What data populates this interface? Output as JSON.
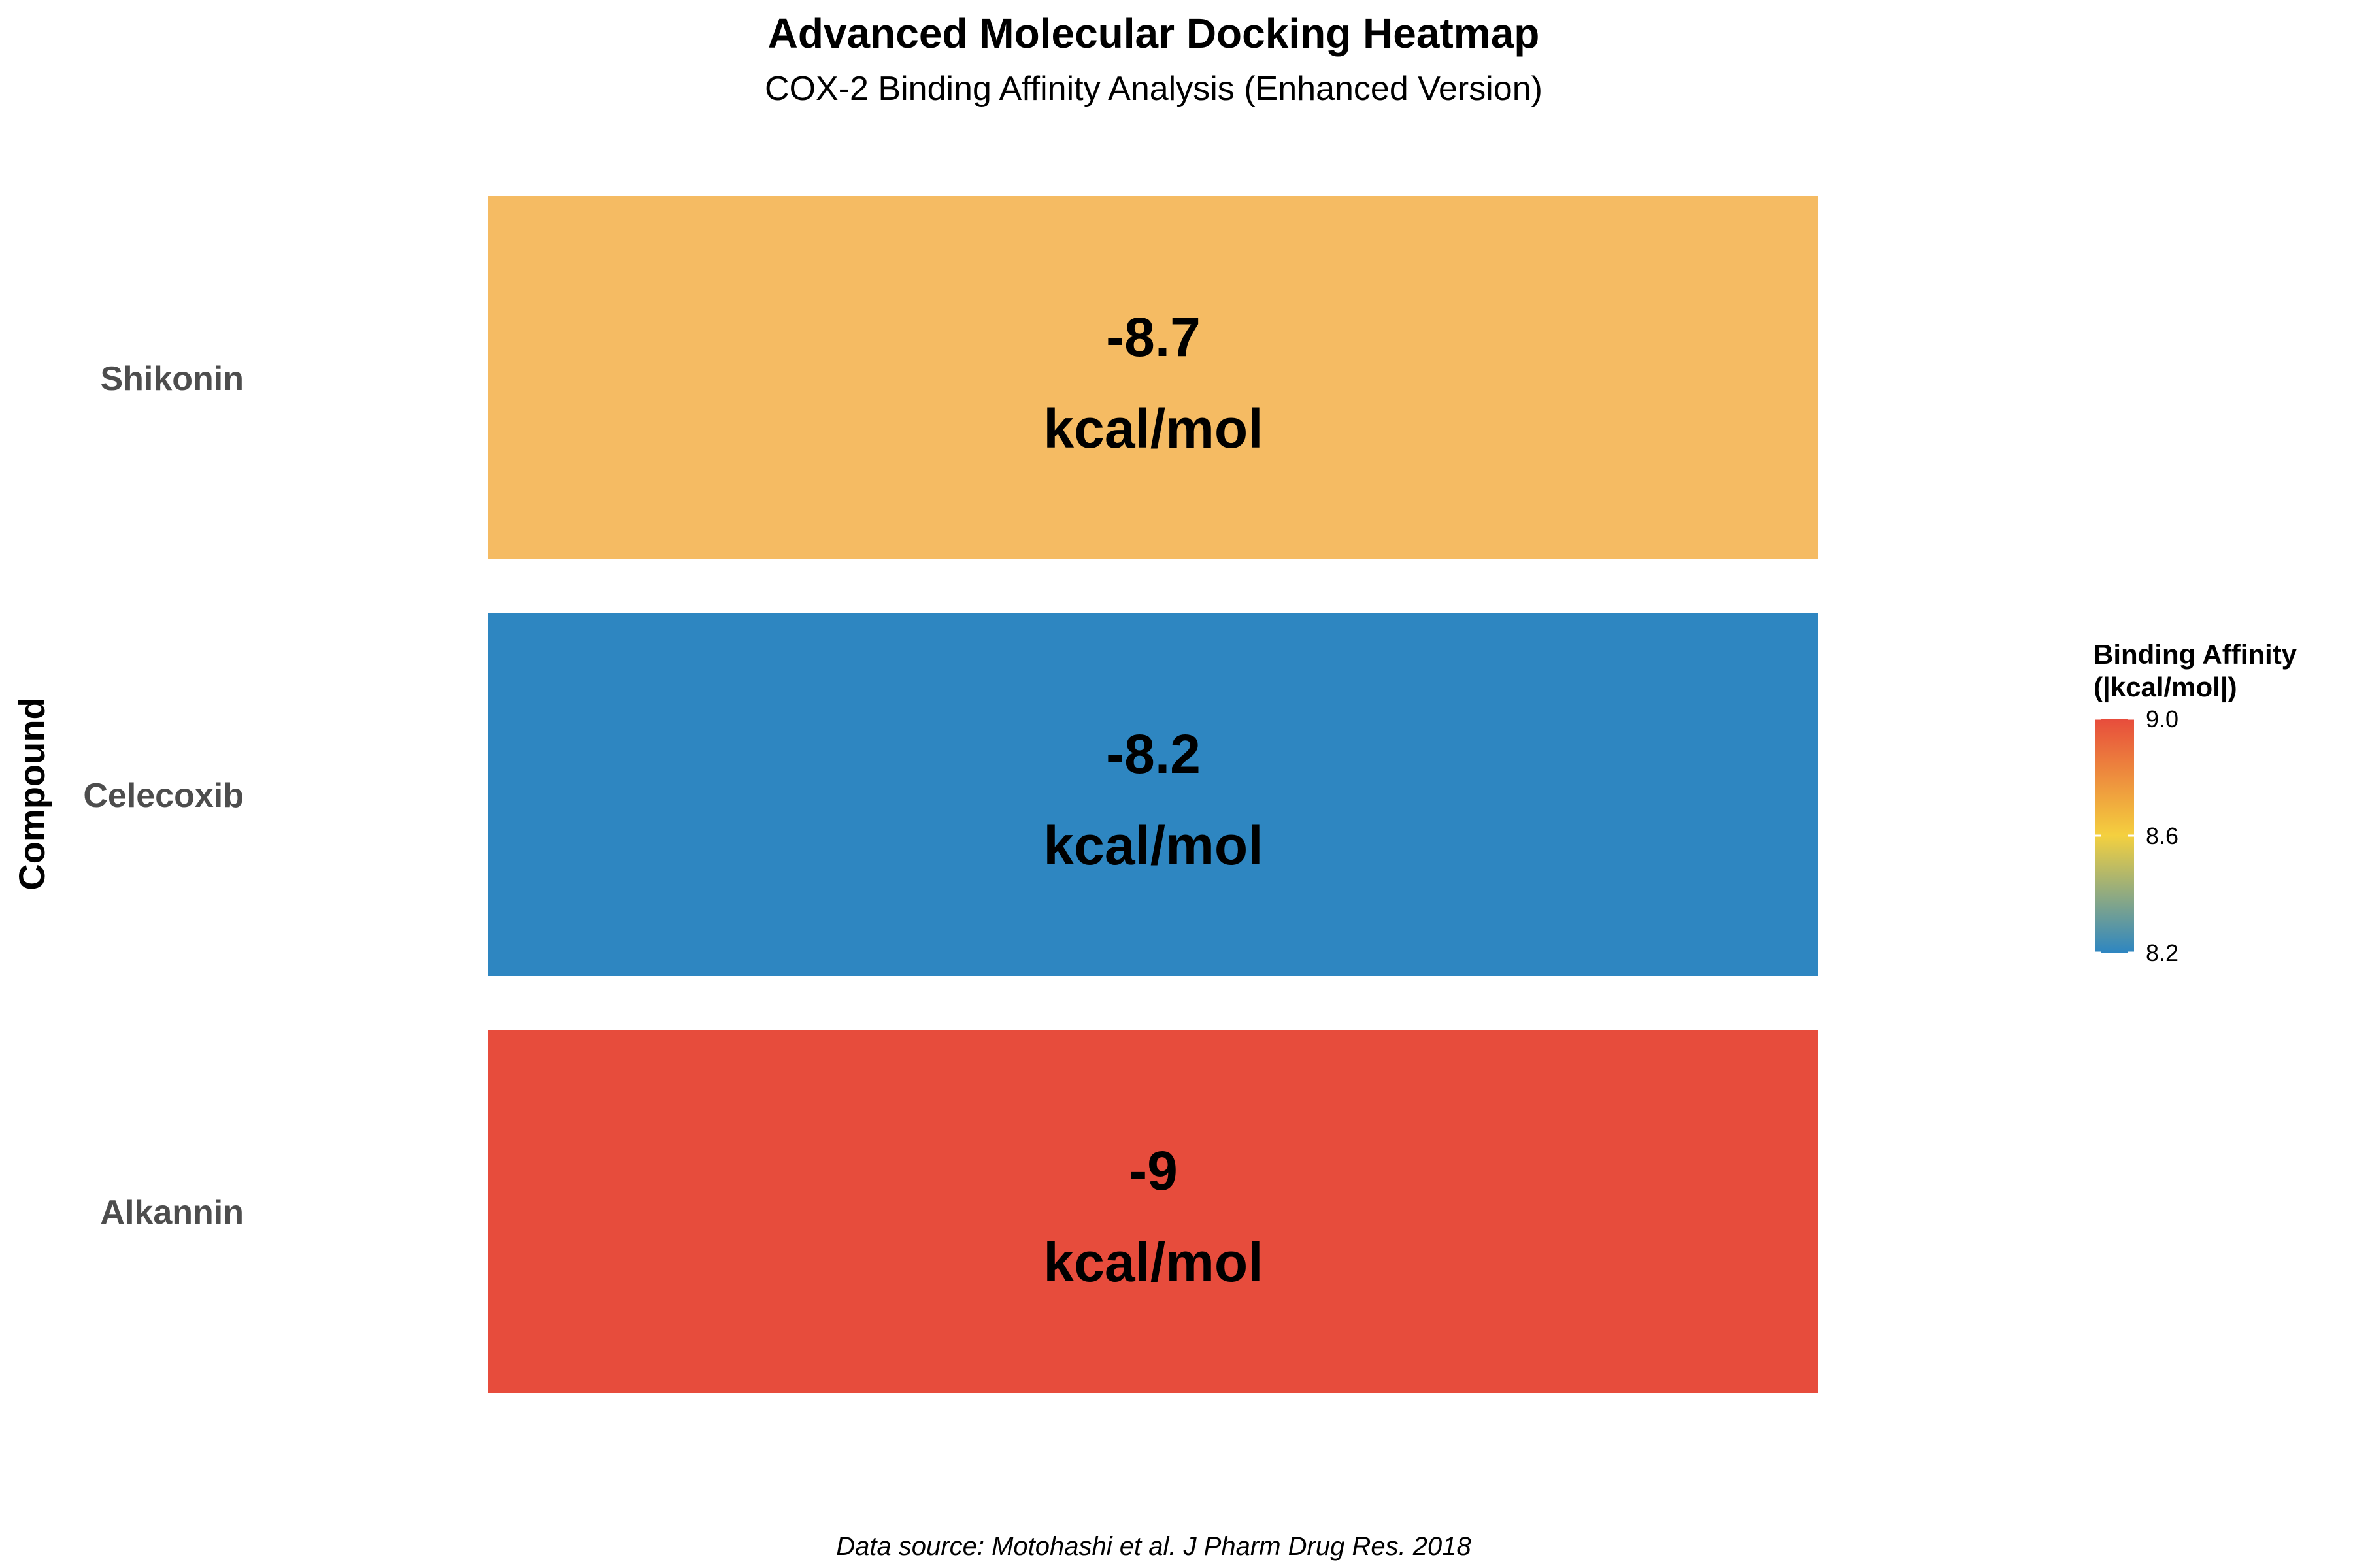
{
  "chart_data": {
    "type": "heatmap",
    "title": "Advanced Molecular Docking Heatmap",
    "subtitle": "COX-2 Binding Affinity Analysis (Enhanced Version)",
    "caption": "Data source: Motohashi et al. J Pharm Drug Res. 2018",
    "ylabel": "Compound",
    "xlabel": "",
    "categories": [
      "Shikonin",
      "Celecoxib",
      "Alkannin"
    ],
    "values": [
      -8.7,
      -8.2,
      -9
    ],
    "cell_labels": [
      {
        "value": "-8.7",
        "unit": "kcal/mol"
      },
      {
        "value": "-8.2",
        "unit": "kcal/mol"
      },
      {
        "value": "-9",
        "unit": "kcal/mol"
      }
    ],
    "colors": [
      "#F5BB63",
      "#2E86C1",
      "#E74C3C"
    ],
    "legend": {
      "title_line1": "Binding Affinity",
      "title_line2": "(|kcal/mol|)",
      "ticks": [
        "9.0",
        "8.6",
        "8.2"
      ],
      "tick_values": [
        9.0,
        8.6,
        8.2
      ],
      "range": [
        8.2,
        9.0
      ],
      "gradient": [
        "#2E86C1",
        "#F4D03F",
        "#E74C3C"
      ],
      "placement": "right"
    }
  }
}
